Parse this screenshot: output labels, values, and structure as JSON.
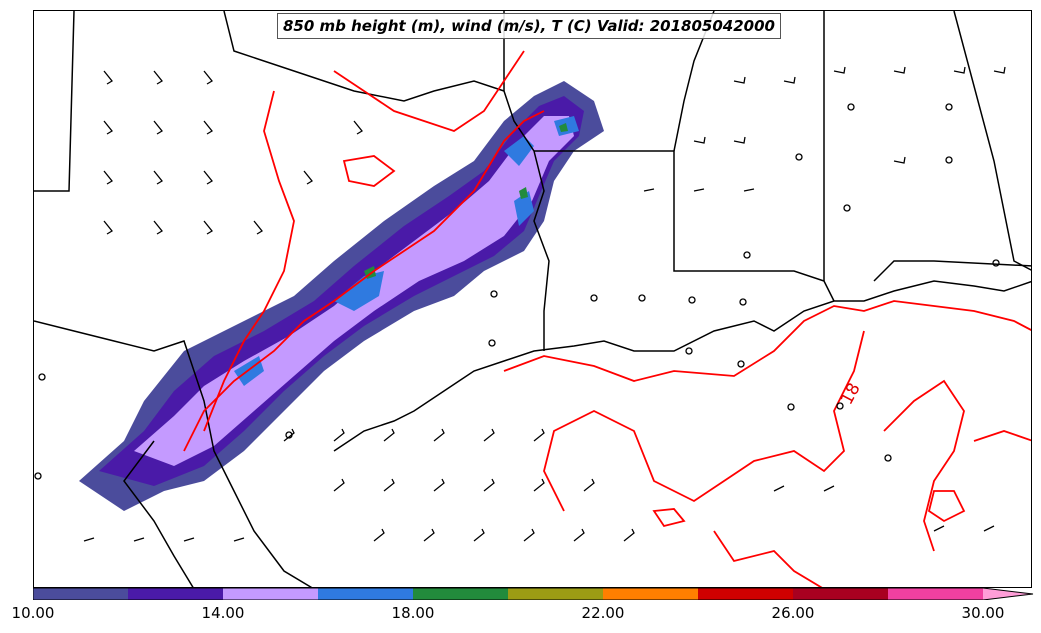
{
  "title": "850 mb height (m), wind (m/s), T (C) Valid: 201805042000",
  "contour_label": "18",
  "colorbar": {
    "tick_labels": [
      "10.00",
      "14.00",
      "18.00",
      "22.00",
      "26.00",
      "30.00"
    ],
    "colors": [
      "#4b4c9c",
      "#4a1aa8",
      "#c49aff",
      "#2f7ae0",
      "#228b3c",
      "#9c9c14",
      "#ff7f00",
      "#d00000",
      "#a80020",
      "#f040a0",
      "#ff9ed8"
    ]
  },
  "contour_color": "#ff0000",
  "boundary_color": "#000000"
}
